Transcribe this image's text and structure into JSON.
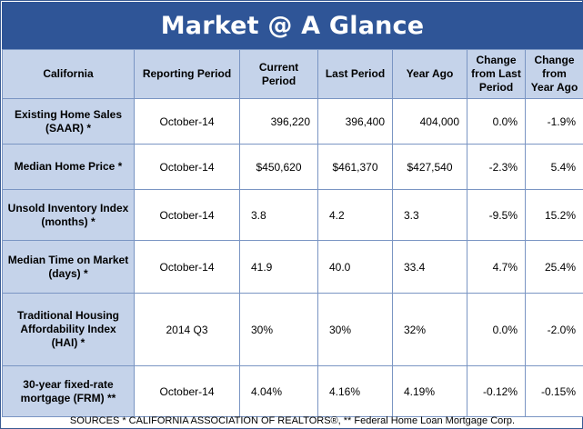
{
  "title": "Market @ A Glance",
  "headers": {
    "region": "California",
    "reporting_period": "Reporting Period",
    "current_period": "Current Period",
    "last_period": "Last Period",
    "year_ago": "Year Ago",
    "change_last": "Change from Last Period",
    "change_year": "Change from Year Ago"
  },
  "rows": [
    {
      "label": "Existing Home Sales (SAAR)  *",
      "period": "October-14",
      "current": "396,220",
      "last": "396,400",
      "year_ago": "404,000",
      "chg_last": "0.0%",
      "chg_year": "-1.9%"
    },
    {
      "label": "Median Home Price  *",
      "period": "October-14",
      "current": "$450,620",
      "last": "$461,370",
      "year_ago": "$427,540",
      "chg_last": "-2.3%",
      "chg_year": "5.4%"
    },
    {
      "label": "Unsold Inventory Index (months)  *",
      "period": "October-14",
      "current": "3.8",
      "last": "4.2",
      "year_ago": "3.3",
      "chg_last": "-9.5%",
      "chg_year": "15.2%"
    },
    {
      "label": "Median Time on Market (days)  *",
      "period": "October-14",
      "current": "41.9",
      "last": "40.0",
      "year_ago": "33.4",
      "chg_last": "4.7%",
      "chg_year": "25.4%"
    },
    {
      "label": "Traditional Housing Affordability Index (HAI) *",
      "period": "2014 Q3",
      "current": "30%",
      "last": "30%",
      "year_ago": "32%",
      "chg_last": "0.0%",
      "chg_year": "-2.0%"
    },
    {
      "label": "30-year fixed-rate mortgage (FRM)  **",
      "period": "October-14",
      "current": "4.04%",
      "last": "4.16%",
      "year_ago": "4.19%",
      "chg_last": "-0.12%",
      "chg_year": "-0.15%"
    }
  ],
  "sources": "SOURCES * CALIFORNIA ASSOCIATION OF REALTORS®, ** Federal Home Loan Mortgage Corp.",
  "colors": {
    "title_bg": "#2f5597",
    "header_bg": "#c5d3ea",
    "border": "#7a95c3"
  }
}
